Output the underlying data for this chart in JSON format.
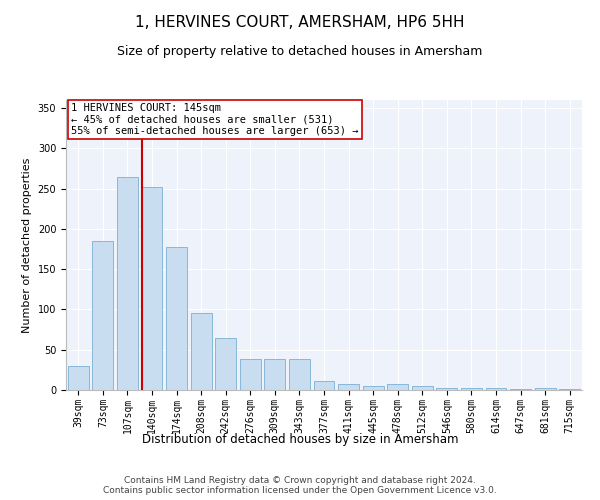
{
  "title": "1, HERVINES COURT, AMERSHAM, HP6 5HH",
  "subtitle": "Size of property relative to detached houses in Amersham",
  "xlabel": "Distribution of detached houses by size in Amersham",
  "ylabel": "Number of detached properties",
  "bar_color": "#c9ddf0",
  "bar_edge_color": "#7bafd4",
  "background_color": "#eef2fa",
  "grid_color": "#ffffff",
  "categories": [
    "39sqm",
    "73sqm",
    "107sqm",
    "140sqm",
    "174sqm",
    "208sqm",
    "242sqm",
    "276sqm",
    "309sqm",
    "343sqm",
    "377sqm",
    "411sqm",
    "445sqm",
    "478sqm",
    "512sqm",
    "546sqm",
    "580sqm",
    "614sqm",
    "647sqm",
    "681sqm",
    "715sqm"
  ],
  "values": [
    30,
    185,
    265,
    252,
    177,
    95,
    65,
    38,
    38,
    38,
    11,
    7,
    5,
    7,
    5,
    3,
    3,
    2,
    1,
    2,
    1
  ],
  "vline_color": "#cc0000",
  "vline_pos": 2.575,
  "annotation_text": "1 HERVINES COURT: 145sqm\n← 45% of detached houses are smaller (531)\n55% of semi-detached houses are larger (653) →",
  "annotation_box_color": "#ffffff",
  "annotation_box_edge": "#cc0000",
  "ylim": [
    0,
    360
  ],
  "yticks": [
    0,
    50,
    100,
    150,
    200,
    250,
    300,
    350
  ],
  "footer": "Contains HM Land Registry data © Crown copyright and database right 2024.\nContains public sector information licensed under the Open Government Licence v3.0.",
  "title_fontsize": 11,
  "subtitle_fontsize": 9,
  "xlabel_fontsize": 8.5,
  "ylabel_fontsize": 8,
  "tick_fontsize": 7,
  "annotation_fontsize": 7.5,
  "footer_fontsize": 6.5
}
